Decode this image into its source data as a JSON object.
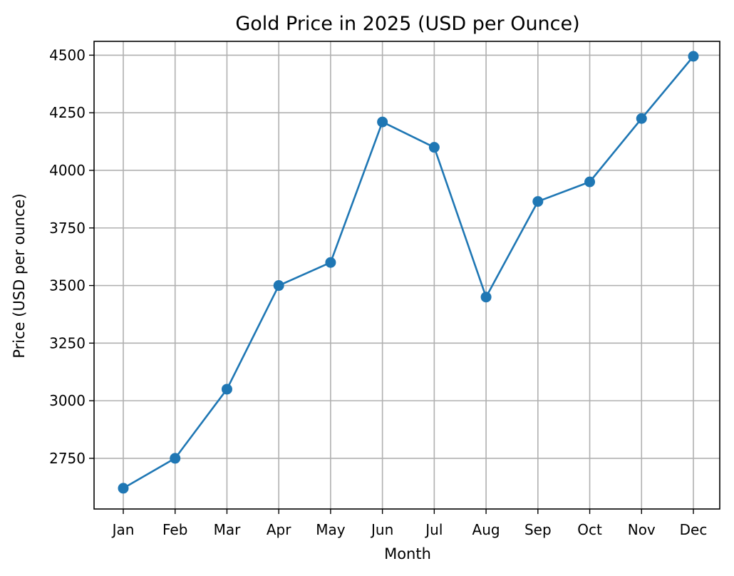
{
  "chart_data": {
    "type": "line",
    "title": "Gold Price in 2025 (USD per Ounce)",
    "xlabel": "Month",
    "ylabel": "Price (USD per ounce)",
    "categories": [
      "Jan",
      "Feb",
      "Mar",
      "Apr",
      "May",
      "Jun",
      "Jul",
      "Aug",
      "Sep",
      "Oct",
      "Nov",
      "Dec"
    ],
    "series": [
      {
        "values": [
          2620,
          2750,
          3050,
          3500,
          3600,
          4210,
          4100,
          3450,
          3865,
          3950,
          4225,
          4495
        ],
        "color": "#1f77b4",
        "marker": "circle"
      }
    ],
    "ylim": [
      2530,
      4560
    ],
    "yticks": [
      2750,
      3000,
      3250,
      3500,
      3750,
      4000,
      4250,
      4500
    ],
    "grid": true,
    "legend": "none"
  }
}
